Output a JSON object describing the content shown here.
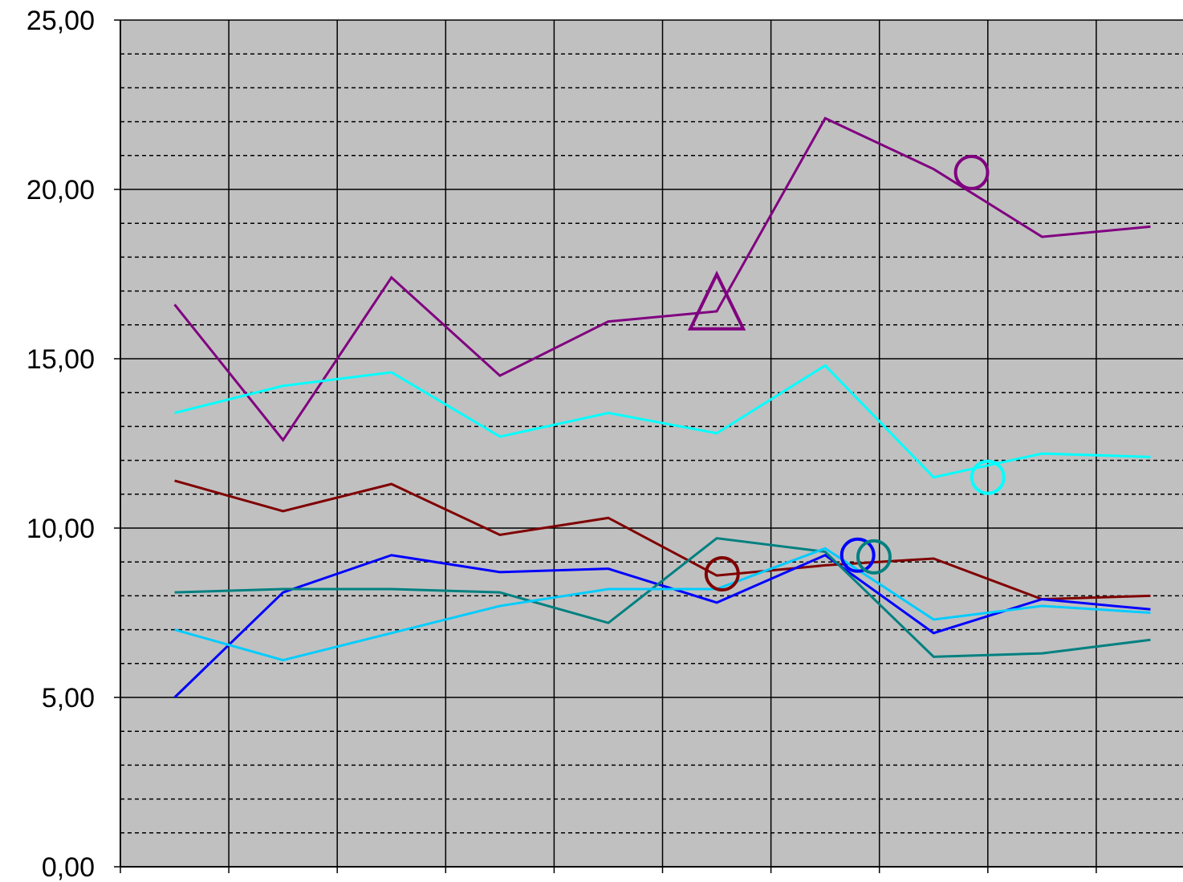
{
  "chart_data": {
    "type": "line",
    "title": "",
    "xlabel": "",
    "ylabel": "",
    "ylim": [
      0,
      25
    ],
    "yticks": [
      "0,00",
      "5,00",
      "10,00",
      "15,00",
      "20,00",
      "25,00"
    ],
    "x": [
      1,
      2,
      3,
      4,
      5,
      6,
      7,
      8,
      9,
      10
    ],
    "xlim": [
      0.5,
      10.3
    ],
    "grid": {
      "major_y": "solid",
      "minor_y": "dashed",
      "x": "solid"
    },
    "plot_background": "#c0c0c0",
    "series": [
      {
        "color": "#800080",
        "values": [
          16.6,
          12.6,
          17.4,
          14.5,
          16.1,
          16.4,
          22.1,
          20.6,
          18.6,
          18.9
        ],
        "markers": [
          {
            "x": 6,
            "y": 16.5,
            "shape": "triangle"
          },
          {
            "x": 8.35,
            "y": 20.5,
            "shape": "circle"
          }
        ]
      },
      {
        "color": "#00ffff",
        "values": [
          13.4,
          14.2,
          14.6,
          12.7,
          13.4,
          12.8,
          14.8,
          11.5,
          12.2,
          12.1
        ],
        "markers": [
          {
            "x": 8.5,
            "y": 11.5,
            "shape": "circle"
          }
        ]
      },
      {
        "color": "#800000",
        "values": [
          11.4,
          10.5,
          11.3,
          9.8,
          10.3,
          8.6,
          8.9,
          9.1,
          7.9,
          8.0
        ],
        "markers": [
          {
            "x": 6.05,
            "y": 8.65,
            "shape": "circle"
          }
        ]
      },
      {
        "color": "#0000ff",
        "values": [
          5.0,
          8.1,
          9.2,
          8.7,
          8.8,
          7.8,
          9.2,
          6.9,
          7.9,
          7.6
        ],
        "markers": [
          {
            "x": 7.3,
            "y": 9.2,
            "shape": "circle"
          }
        ]
      },
      {
        "color": "#008080",
        "values": [
          8.1,
          8.2,
          8.2,
          8.1,
          7.2,
          9.7,
          9.3,
          6.2,
          6.3,
          6.7
        ],
        "markers": [
          {
            "x": 7.45,
            "y": 9.15,
            "shape": "circle"
          }
        ]
      },
      {
        "color": "#00ccff",
        "values": [
          7.0,
          6.1,
          6.9,
          7.7,
          8.2,
          8.2,
          9.4,
          7.3,
          7.7,
          7.5
        ],
        "markers": []
      }
    ]
  }
}
